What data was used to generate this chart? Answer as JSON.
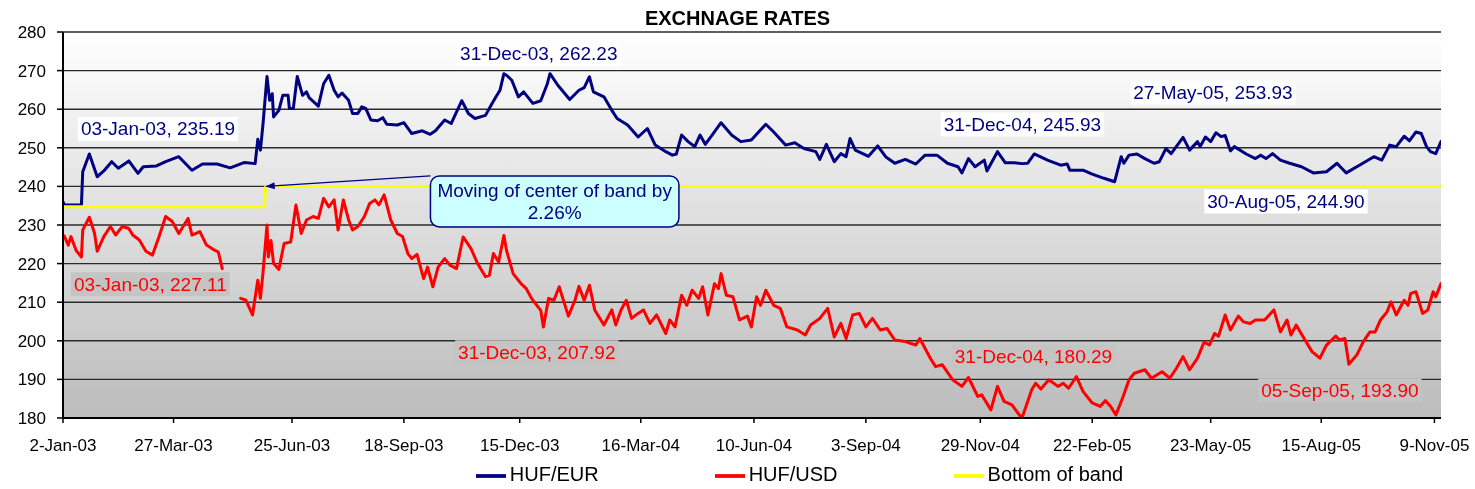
{
  "chart_data": {
    "type": "line",
    "title": "EXCHNAGE RATES",
    "xlim": [
      "2003-01-02",
      "2005-11-14"
    ],
    "xticks": [
      {
        "value": "2003-01-02",
        "label": "2-Jan-03"
      },
      {
        "value": "2003-03-27",
        "label": "27-Mar-03"
      },
      {
        "value": "2003-06-25",
        "label": "25-Jun-03"
      },
      {
        "value": "2003-09-18",
        "label": "18-Sep-03"
      },
      {
        "value": "2003-12-15",
        "label": "15-Dec-03"
      },
      {
        "value": "2004-03-16",
        "label": "16-Mar-04"
      },
      {
        "value": "2004-06-10",
        "label": "10-Jun-04"
      },
      {
        "value": "2004-09-03",
        "label": "3-Sep-04"
      },
      {
        "value": "2004-11-29",
        "label": "29-Nov-04"
      },
      {
        "value": "2005-02-22",
        "label": "22-Feb-05"
      },
      {
        "value": "2005-05-23",
        "label": "23-May-05"
      },
      {
        "value": "2005-08-15",
        "label": "15-Aug-05"
      },
      {
        "value": "2005-11-09",
        "label": "9-Nov-05"
      }
    ],
    "ylim": [
      180,
      280
    ],
    "yticks": [
      180,
      190,
      200,
      210,
      220,
      230,
      240,
      250,
      260,
      270,
      280
    ],
    "grid": "y",
    "legend": "bottom",
    "series": [
      {
        "name": "HUF/EUR",
        "color": "#000080",
        "x": [
          "2003-01-02",
          "2003-01-03",
          "2003-01-16",
          "2003-01-17",
          "2003-01-22",
          "2003-01-28",
          "2003-02-02",
          "2003-02-08",
          "2003-02-13",
          "2003-02-21",
          "2003-02-28",
          "2003-03-04",
          "2003-03-14",
          "2003-03-21",
          "2003-03-31",
          "2003-04-10",
          "2003-04-18",
          "2003-04-29",
          "2003-05-09",
          "2003-05-20",
          "2003-05-28",
          "2003-05-30",
          "2003-06-01",
          "2003-06-03",
          "2003-06-06",
          "2003-06-08",
          "2003-06-10",
          "2003-06-11",
          "2003-06-15",
          "2003-06-18",
          "2003-06-22",
          "2003-06-23",
          "2003-06-26",
          "2003-06-29",
          "2003-07-03",
          "2003-07-06",
          "2003-07-08",
          "2003-07-15",
          "2003-07-19",
          "2003-07-23",
          "2003-07-27",
          "2003-07-30",
          "2003-08-02",
          "2003-08-07",
          "2003-08-10",
          "2003-08-14",
          "2003-08-17",
          "2003-08-20",
          "2003-08-24",
          "2003-08-29",
          "2003-09-02",
          "2003-09-05",
          "2003-09-13",
          "2003-09-18",
          "2003-09-24",
          "2003-10-02",
          "2003-10-08",
          "2003-10-12",
          "2003-10-19",
          "2003-10-24",
          "2003-11-01",
          "2003-11-06",
          "2003-11-11",
          "2003-11-19",
          "2003-11-24",
          "2003-11-27",
          "2003-11-30",
          "2003-12-03",
          "2003-12-05",
          "2003-12-09",
          "2003-12-14",
          "2003-12-18",
          "2003-12-25",
          "2003-12-31",
          "2004-01-05",
          "2004-01-07",
          "2004-01-13",
          "2004-01-22",
          "2004-01-29",
          "2004-02-02",
          "2004-02-06",
          "2004-02-09",
          "2004-02-17",
          "2004-02-23",
          "2004-02-27",
          "2004-03-06",
          "2004-03-14",
          "2004-03-21",
          "2004-03-27",
          "2004-04-04",
          "2004-04-09",
          "2004-04-12",
          "2004-04-16",
          "2004-04-21",
          "2004-04-26",
          "2004-04-30",
          "2004-05-04",
          "2004-05-10",
          "2004-05-16",
          "2004-05-24",
          "2004-05-31",
          "2004-06-08",
          "2004-06-13",
          "2004-06-19",
          "2004-06-25",
          "2004-07-04",
          "2004-07-11",
          "2004-07-18",
          "2004-07-27",
          "2004-07-30",
          "2004-08-04",
          "2004-08-10",
          "2004-08-15",
          "2004-08-19",
          "2004-08-22",
          "2004-08-26",
          "2004-09-05",
          "2004-09-12",
          "2004-09-18",
          "2004-09-25",
          "2004-10-03",
          "2004-10-11",
          "2004-10-18",
          "2004-10-27",
          "2004-11-04",
          "2004-11-12",
          "2004-11-15",
          "2004-11-20",
          "2004-11-25",
          "2004-12-02",
          "2004-12-04",
          "2004-12-12",
          "2004-12-18",
          "2004-12-25",
          "2004-12-31",
          "2005-01-04",
          "2005-01-09",
          "2005-01-19",
          "2005-01-29",
          "2005-02-03",
          "2005-02-05",
          "2005-02-15",
          "2005-02-22",
          "2005-03-03",
          "2005-03-11",
          "2005-03-16",
          "2005-03-18",
          "2005-03-22",
          "2005-03-28",
          "2005-04-03",
          "2005-04-10",
          "2005-04-14",
          "2005-04-19",
          "2005-04-23",
          "2005-05-02",
          "2005-05-07",
          "2005-05-13",
          "2005-05-15",
          "2005-05-19",
          "2005-05-23",
          "2005-05-27",
          "2005-05-31",
          "2005-06-03",
          "2005-06-07",
          "2005-06-10",
          "2005-06-19",
          "2005-06-26",
          "2005-06-30",
          "2005-07-04",
          "2005-07-09",
          "2005-07-15",
          "2005-07-22",
          "2005-07-31",
          "2005-08-09",
          "2005-08-19",
          "2005-08-27",
          "2005-08-30",
          "2005-09-03",
          "2005-09-13",
          "2005-09-24",
          "2005-09-30",
          "2005-10-06",
          "2005-10-11",
          "2005-10-17",
          "2005-10-21",
          "2005-10-26",
          "2005-10-30",
          "2005-11-03",
          "2005-11-06",
          "2005-11-10",
          "2005-11-14"
        ],
        "values": [
          236.0,
          235.2,
          235.2,
          243.8,
          248.4,
          242.5,
          244.0,
          246.4,
          244.7,
          246.6,
          243.4,
          245.1,
          245.3,
          246.4,
          247.7,
          244.2,
          245.8,
          245.8,
          244.8,
          246.2,
          245.9,
          252.2,
          249.4,
          256.3,
          268.5,
          262.3,
          264.0,
          258.0,
          259.7,
          263.6,
          263.6,
          260.2,
          260.2,
          268.5,
          263.6,
          264.5,
          263.0,
          260.8,
          266.6,
          268.8,
          264.9,
          263.2,
          264.2,
          262.3,
          258.9,
          258.9,
          260.6,
          260.2,
          257.2,
          257.0,
          257.8,
          256.1,
          255.9,
          256.5,
          253.7,
          254.4,
          253.5,
          254.4,
          257.2,
          256.3,
          262.2,
          258.9,
          257.6,
          258.4,
          261.5,
          263.2,
          264.9,
          269.2,
          268.8,
          267.5,
          263.2,
          264.5,
          261.5,
          262.2,
          266.6,
          269.2,
          266.2,
          262.5,
          264.9,
          265.6,
          268.4,
          264.5,
          263.2,
          259.7,
          257.6,
          255.9,
          252.8,
          255.0,
          250.7,
          249.0,
          248.1,
          248.4,
          253.3,
          251.6,
          250.3,
          253.3,
          250.9,
          253.7,
          256.5,
          253.3,
          251.6,
          252.0,
          253.9,
          256.1,
          254.1,
          250.7,
          251.3,
          249.8,
          249.0,
          247.0,
          250.9,
          246.4,
          248.5,
          247.7,
          252.4,
          249.4,
          247.8,
          250.5,
          247.7,
          246.0,
          247.0,
          245.8,
          248.1,
          248.1,
          246.0,
          245.1,
          243.5,
          247.2,
          245.1,
          246.8,
          244.0,
          249.0,
          246.1,
          246.1,
          245.9,
          246.0,
          248.4,
          246.8,
          245.5,
          245.8,
          244.2,
          244.2,
          243.2,
          242.1,
          241.2,
          247.7,
          246.0,
          248.1,
          248.4,
          247.2,
          246.0,
          246.4,
          249.8,
          248.5,
          252.7,
          249.4,
          251.6,
          250.3,
          252.8,
          251.6,
          253.9,
          252.9,
          253.2,
          249.2,
          250.3,
          248.4,
          247.2,
          248.1,
          247.2,
          248.5,
          246.8,
          246.0,
          245.1,
          243.5,
          243.8,
          246.0,
          244.9,
          243.5,
          245.5,
          247.7,
          246.8,
          250.7,
          250.3,
          253.0,
          251.8,
          254.1,
          253.7,
          250.3,
          249.0,
          248.5,
          251.6
        ]
      },
      {
        "name": "HUF/USD",
        "color": "#ff0000",
        "x": [
          "2003-01-02",
          "2003-01-03",
          "2003-01-06",
          "2003-01-08",
          "2003-01-12",
          "2003-01-16",
          "2003-01-17",
          "2003-01-22",
          "2003-01-26",
          "2003-01-28",
          "2003-02-02",
          "2003-02-07",
          "2003-02-11",
          "2003-02-16",
          "2003-02-21",
          "2003-02-24",
          "2003-03-01",
          "2003-03-06",
          "2003-03-11",
          "2003-03-16",
          "2003-03-21",
          "2003-03-26",
          "2003-03-31",
          "2003-04-07",
          "2003-04-10",
          "2003-04-16",
          "2003-04-21",
          "2003-04-26",
          "2003-04-30",
          "2003-05-03",
          "2003-05-10",
          "2003-05-17",
          "2003-05-21",
          "2003-05-26",
          "2003-05-30",
          "2003-06-01",
          "2003-06-03",
          "2003-06-06",
          "2003-06-07",
          "2003-06-09",
          "2003-06-11",
          "2003-06-15",
          "2003-06-19",
          "2003-06-24",
          "2003-06-28",
          "2003-07-02",
          "2003-07-06",
          "2003-07-11",
          "2003-07-15",
          "2003-07-19",
          "2003-07-23",
          "2003-07-27",
          "2003-07-30",
          "2003-08-03",
          "2003-08-07",
          "2003-08-10",
          "2003-08-14",
          "2003-08-19",
          "2003-08-23",
          "2003-08-27",
          "2003-08-30",
          "2003-09-03",
          "2003-09-08",
          "2003-09-13",
          "2003-09-17",
          "2003-09-21",
          "2003-09-24",
          "2003-09-28",
          "2003-10-03",
          "2003-10-06",
          "2003-10-10",
          "2003-10-14",
          "2003-10-19",
          "2003-10-23",
          "2003-10-28",
          "2003-11-02",
          "2003-11-08",
          "2003-11-13",
          "2003-11-19",
          "2003-11-22",
          "2003-11-25",
          "2003-11-29",
          "2003-12-03",
          "2003-12-05",
          "2003-12-10",
          "2003-12-16",
          "2003-12-20",
          "2003-12-24",
          "2003-12-28",
          "2003-12-31",
          "2004-01-02",
          "2004-01-06",
          "2004-01-10",
          "2004-01-14",
          "2004-01-21",
          "2004-01-26",
          "2004-01-29",
          "2004-02-02",
          "2004-02-06",
          "2004-02-10",
          "2004-02-17",
          "2004-02-23",
          "2004-02-26",
          "2004-03-01",
          "2004-03-05",
          "2004-03-09",
          "2004-03-14",
          "2004-03-18",
          "2004-03-23",
          "2004-03-28",
          "2004-04-04",
          "2004-04-07",
          "2004-04-11",
          "2004-04-16",
          "2004-04-20",
          "2004-04-24",
          "2004-04-29",
          "2004-05-02",
          "2004-05-06",
          "2004-05-11",
          "2004-05-14",
          "2004-05-16",
          "2004-05-20",
          "2004-05-25",
          "2004-05-30",
          "2004-06-05",
          "2004-06-08",
          "2004-06-12",
          "2004-06-15",
          "2004-06-19",
          "2004-06-25",
          "2004-06-30",
          "2004-07-05",
          "2004-07-13",
          "2004-07-19",
          "2004-07-23",
          "2004-07-30",
          "2004-08-05",
          "2004-08-10",
          "2004-08-15",
          "2004-08-19",
          "2004-08-24",
          "2004-08-29",
          "2004-09-03",
          "2004-09-08",
          "2004-09-14",
          "2004-09-19",
          "2004-09-25",
          "2004-10-03",
          "2004-10-11",
          "2004-10-14",
          "2004-10-22",
          "2004-10-26",
          "2004-10-31",
          "2004-11-08",
          "2004-11-15",
          "2004-11-20",
          "2004-11-27",
          "2004-11-30",
          "2004-12-07",
          "2004-12-12",
          "2004-12-17",
          "2004-12-23",
          "2004-12-29",
          "2004-12-31",
          "2005-01-07",
          "2005-01-10",
          "2005-01-14",
          "2005-01-20",
          "2005-01-27",
          "2005-01-31",
          "2005-02-04",
          "2005-02-10",
          "2005-02-15",
          "2005-02-22",
          "2005-02-28",
          "2005-03-04",
          "2005-03-08",
          "2005-03-12",
          "2005-03-17",
          "2005-03-22",
          "2005-03-26",
          "2005-04-03",
          "2005-04-08",
          "2005-04-16",
          "2005-04-22",
          "2005-04-27",
          "2005-05-02",
          "2005-05-07",
          "2005-05-13",
          "2005-05-18",
          "2005-05-22",
          "2005-05-26",
          "2005-05-29",
          "2005-06-03",
          "2005-06-07",
          "2005-06-13",
          "2005-06-17",
          "2005-06-22",
          "2005-06-26",
          "2005-07-03",
          "2005-07-10",
          "2005-07-15",
          "2005-07-20",
          "2005-07-23",
          "2005-07-27",
          "2005-08-02",
          "2005-08-08",
          "2005-08-14",
          "2005-08-19",
          "2005-08-26",
          "2005-08-29",
          "2005-09-02",
          "2005-09-05",
          "2005-09-11",
          "2005-09-16",
          "2005-09-21",
          "2005-09-25",
          "2005-09-29",
          "2005-10-04",
          "2005-10-07",
          "2005-10-11",
          "2005-10-17",
          "2005-10-20",
          "2005-10-22",
          "2005-10-26",
          "2005-10-31",
          "2005-11-04",
          "2005-11-08",
          "2005-11-10",
          "2005-11-14"
        ],
        "values": [
          227.4,
          227.1,
          224.8,
          227.0,
          223.4,
          221.7,
          228.7,
          232.0,
          227.8,
          223.2,
          227.0,
          229.6,
          227.4,
          229.6,
          229.1,
          227.4,
          226.1,
          223.2,
          222.2,
          227.0,
          232.2,
          230.9,
          227.8,
          231.7,
          227.4,
          228.3,
          224.8,
          223.7,
          223.0,
          218.7,
          null,
          211.0,
          210.5,
          206.7,
          215.7,
          211.0,
          217.8,
          230.0,
          221.7,
          226.0,
          220.0,
          218.5,
          225.2,
          225.6,
          235.2,
          227.8,
          231.3,
          232.2,
          231.7,
          236.9,
          234.7,
          236.5,
          228.7,
          236.5,
          231.3,
          228.7,
          229.6,
          232.2,
          235.6,
          236.5,
          235.2,
          237.8,
          231.3,
          227.8,
          227.0,
          222.6,
          221.3,
          222.4,
          216.1,
          219.1,
          214.0,
          219.1,
          221.3,
          219.6,
          218.7,
          226.9,
          223.9,
          220.0,
          216.6,
          217.0,
          222.6,
          220.4,
          227.3,
          223.4,
          217.4,
          214.8,
          213.5,
          211.0,
          209.2,
          207.9,
          203.6,
          211.0,
          210.5,
          214.0,
          206.4,
          210.5,
          214.1,
          210.5,
          214.4,
          208.0,
          204.1,
          208.0,
          204.1,
          208.0,
          210.5,
          205.8,
          207.1,
          208.0,
          204.5,
          206.7,
          201.9,
          205.4,
          203.6,
          211.8,
          209.2,
          213.1,
          211.0,
          214.0,
          206.7,
          214.8,
          213.5,
          217.4,
          211.8,
          211.4,
          205.4,
          206.4,
          203.6,
          211.4,
          209.2,
          213.1,
          209.2,
          208.4,
          203.6,
          202.8,
          201.5,
          204.1,
          205.8,
          208.4,
          201.0,
          204.5,
          200.6,
          206.7,
          207.1,
          203.6,
          205.8,
          202.8,
          203.2,
          200.2,
          199.8,
          198.9,
          200.6,
          195.5,
          193.3,
          193.8,
          189.9,
          188.2,
          190.5,
          185.6,
          186.0,
          182.1,
          188.2,
          184.3,
          183.4,
          180.6,
          180.3,
          187.3,
          189.0,
          187.5,
          189.9,
          188.2,
          189.0,
          187.7,
          190.7,
          186.9,
          183.9,
          183.0,
          184.5,
          183.0,
          180.8,
          185.1,
          189.9,
          191.6,
          192.5,
          190.3,
          192.0,
          190.3,
          192.9,
          195.9,
          192.5,
          195.5,
          199.7,
          198.9,
          201.9,
          201.2,
          206.7,
          202.8,
          206.4,
          204.9,
          204.5,
          205.4,
          205.4,
          208.0,
          202.3,
          205.4,
          201.5,
          204.1,
          200.6,
          197.2,
          195.5,
          198.9,
          201.2,
          200.2,
          200.6,
          193.9,
          196.3,
          199.8,
          202.3,
          202.3,
          205.4,
          207.5,
          210.1,
          206.7,
          210.5,
          209.2,
          212.3,
          212.7,
          207.1,
          208.0,
          212.7,
          211.4,
          214.8
        ]
      },
      {
        "name": "Bottom of band",
        "color": "#ffff00",
        "x": [
          "2003-01-02",
          "2003-06-04",
          "2003-06-05",
          "2003-10-07",
          "2003-10-08",
          "2004-04-15",
          "2005-11-14"
        ],
        "values": [
          234.7,
          234.7,
          240.0,
          240.0,
          null,
          240.0,
          240.0
        ]
      }
    ],
    "annotations": [
      "03-Jan-03, 235.19",
      {
        "text": "31-Dec-03, 262.23",
        "x": "2003-12-31",
        "y": 262.23
      },
      {
        "text": "31-Dec-04, 245.93",
        "x": "2004-12-31",
        "y": 245.93
      },
      {
        "text": "27-May-05, 253.93",
        "x": "2005-05-27",
        "y": 253.93
      },
      {
        "text": "30-Aug-05, 244.90",
        "x": "2005-08-30",
        "y": 244.9
      },
      {
        "text": "03-Jan-03, 227.11",
        "x": "2003-01-03",
        "y": 227.11
      },
      {
        "text": "31-Dec-03, 207.92",
        "x": "2003-12-31",
        "y": 207.92
      },
      {
        "text": "31-Dec-04, 180.29",
        "x": "2004-12-31",
        "y": 180.29
      },
      {
        "text": "05-Sep-05, 193.90",
        "x": "2005-09-05",
        "y": 193.9
      },
      {
        "text": "Moving of center of band by 2.26%",
        "x": "2003-06-05",
        "y": 240
      }
    ]
  }
}
